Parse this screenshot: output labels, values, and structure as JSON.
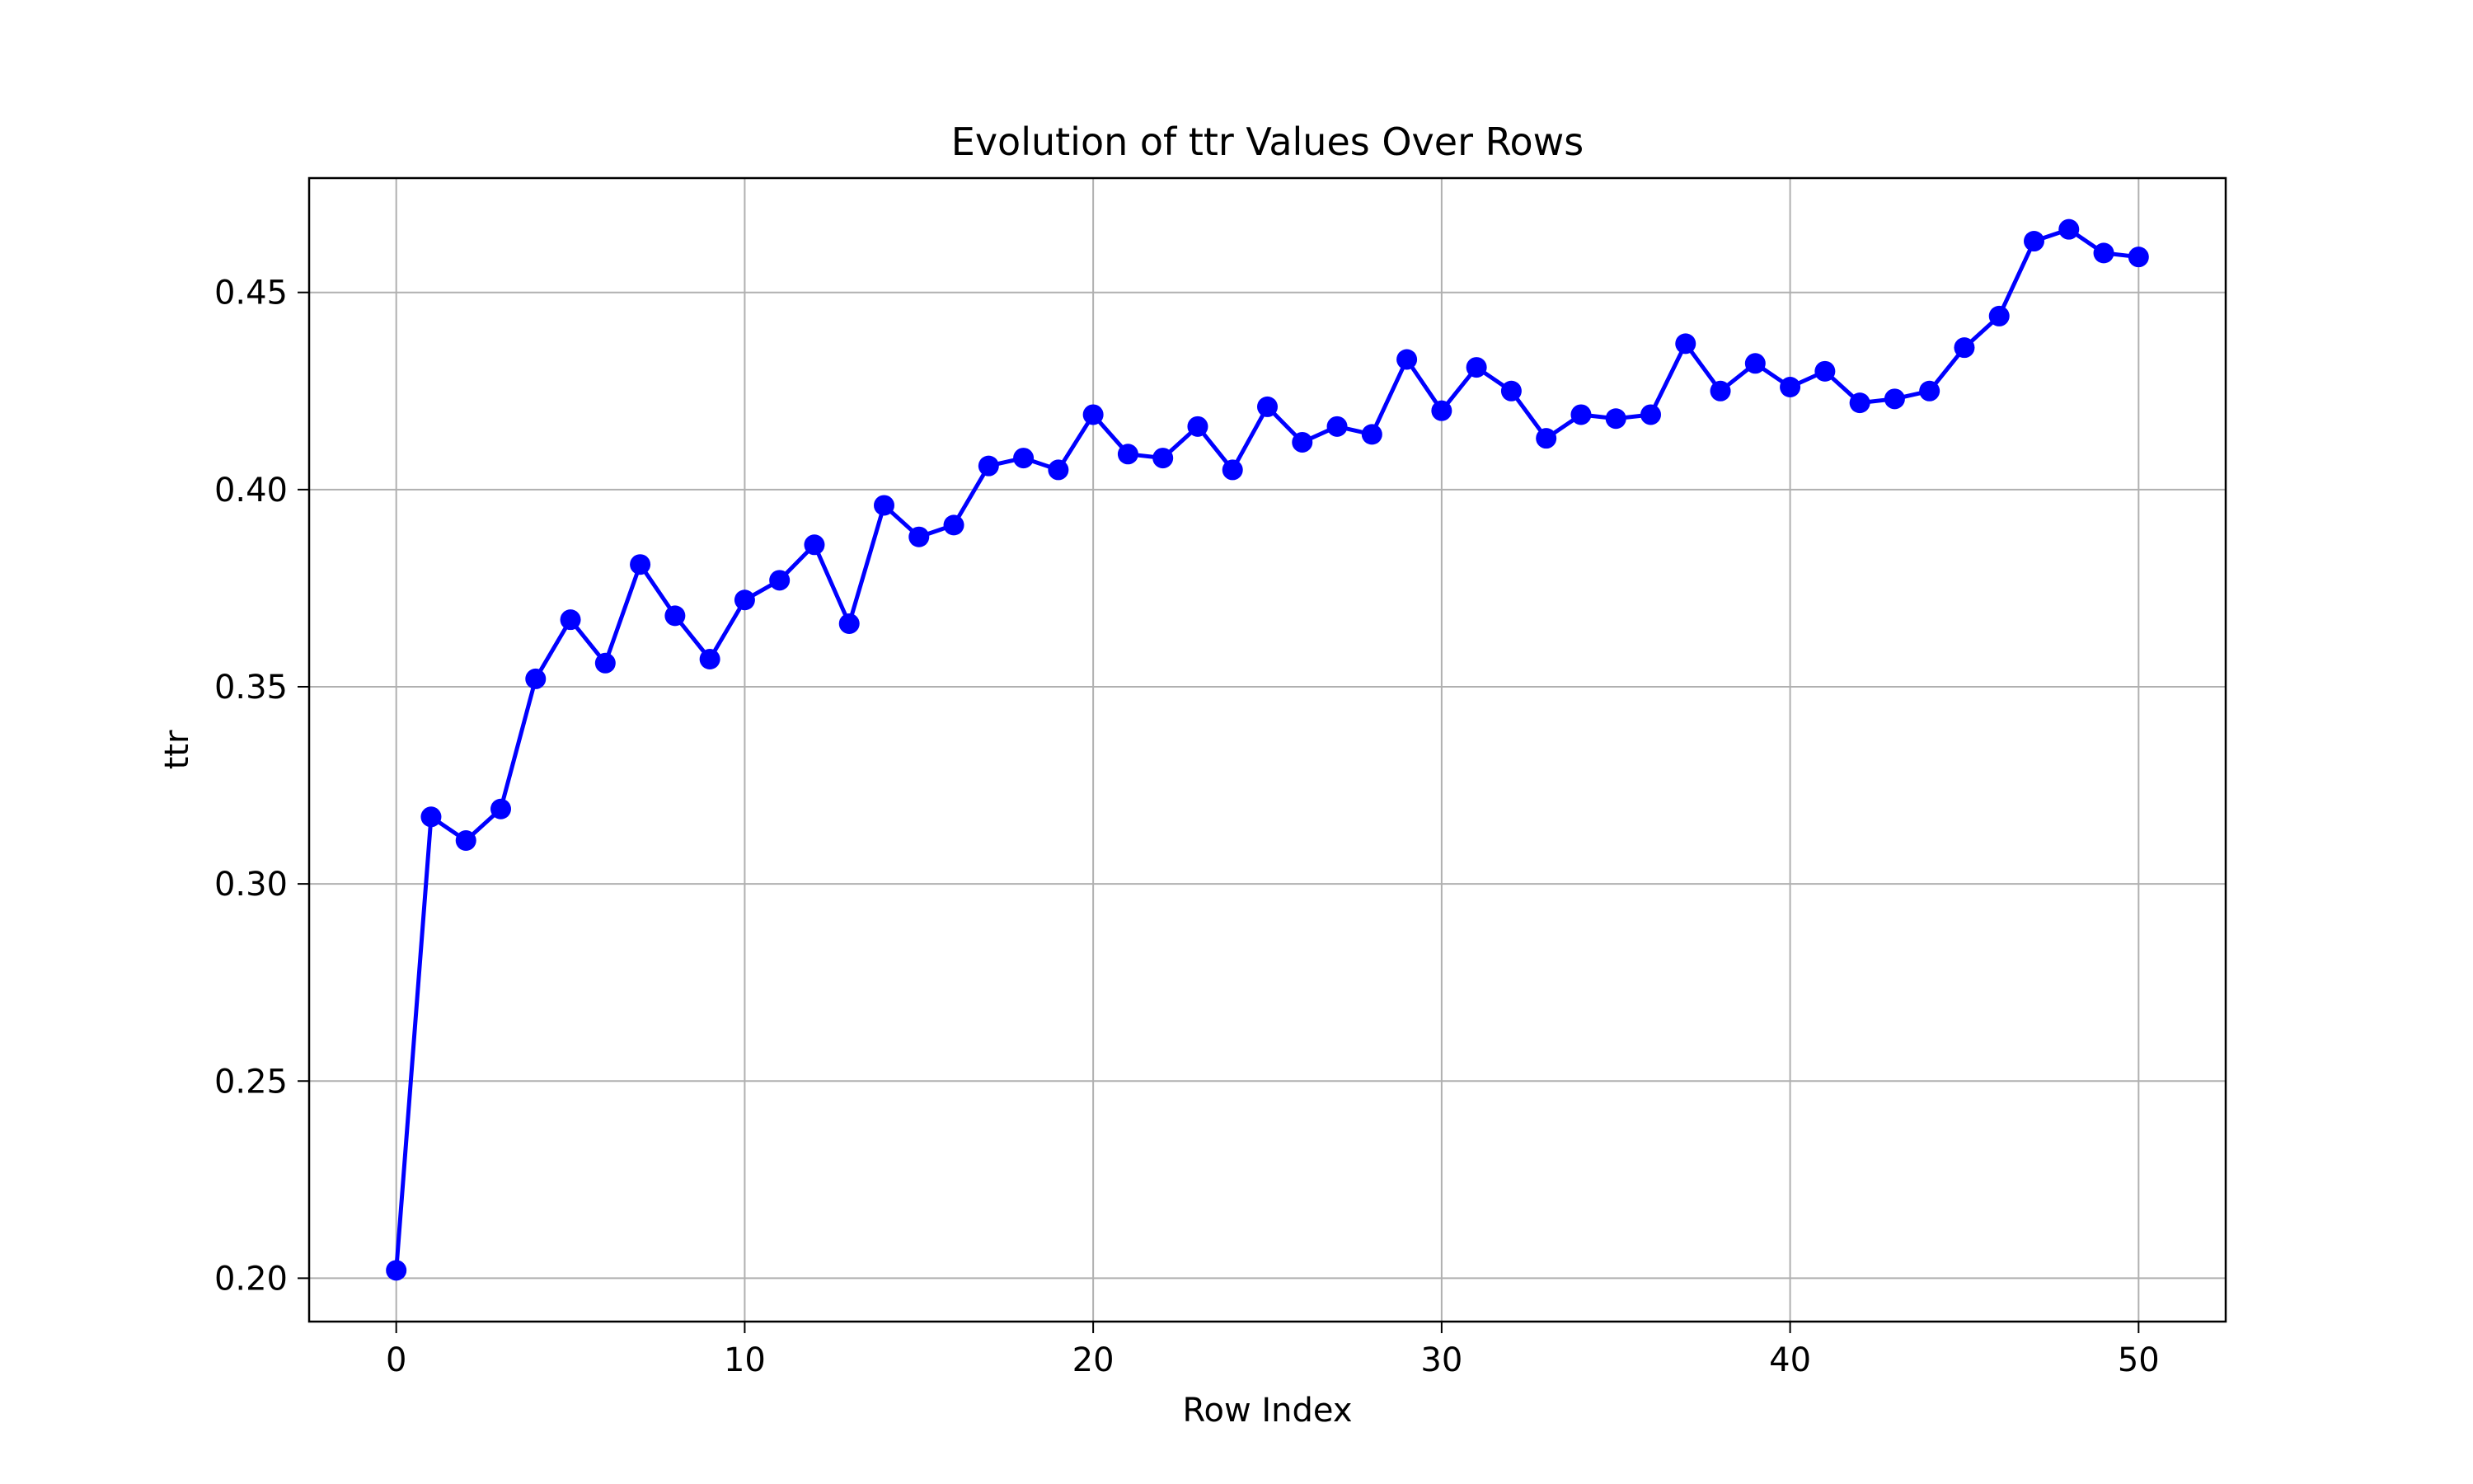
{
  "chart_data": {
    "type": "line",
    "title": "Evolution of ttr Values Over Rows",
    "xlabel": "Row Index",
    "ylabel": "ttr",
    "xlim": [
      -2.5,
      52.5
    ],
    "ylim": [
      0.189,
      0.479
    ],
    "xticks": [
      0,
      10,
      20,
      30,
      40,
      50
    ],
    "yticks": [
      0.2,
      0.25,
      0.3,
      0.35,
      0.4,
      0.45
    ],
    "xtick_labels": [
      "0",
      "10",
      "20",
      "30",
      "40",
      "50"
    ],
    "ytick_labels": [
      "0.20",
      "0.25",
      "0.30",
      "0.35",
      "0.40",
      "0.45"
    ],
    "grid": true,
    "legend": "none",
    "series": [
      {
        "color": "#0000ff",
        "marker": "circle",
        "x": [
          0,
          1,
          2,
          3,
          4,
          5,
          6,
          7,
          8,
          9,
          10,
          11,
          12,
          13,
          14,
          15,
          16,
          17,
          18,
          19,
          20,
          21,
          22,
          23,
          24,
          25,
          26,
          27,
          28,
          29,
          30,
          31,
          32,
          33,
          34,
          35,
          36,
          37,
          38,
          39,
          40,
          41,
          42,
          43,
          44,
          45,
          46,
          47,
          48,
          49,
          50
        ],
        "values": [
          0.202,
          0.317,
          0.311,
          0.319,
          0.352,
          0.367,
          0.356,
          0.381,
          0.368,
          0.357,
          0.372,
          0.377,
          0.386,
          0.366,
          0.396,
          0.388,
          0.391,
          0.406,
          0.408,
          0.405,
          0.419,
          0.409,
          0.408,
          0.416,
          0.405,
          0.421,
          0.412,
          0.416,
          0.414,
          0.433,
          0.42,
          0.431,
          0.425,
          0.413,
          0.419,
          0.418,
          0.419,
          0.437,
          0.425,
          0.432,
          0.426,
          0.43,
          0.422,
          0.423,
          0.425,
          0.436,
          0.444,
          0.463,
          0.466,
          0.46,
          0.459
        ]
      }
    ]
  }
}
